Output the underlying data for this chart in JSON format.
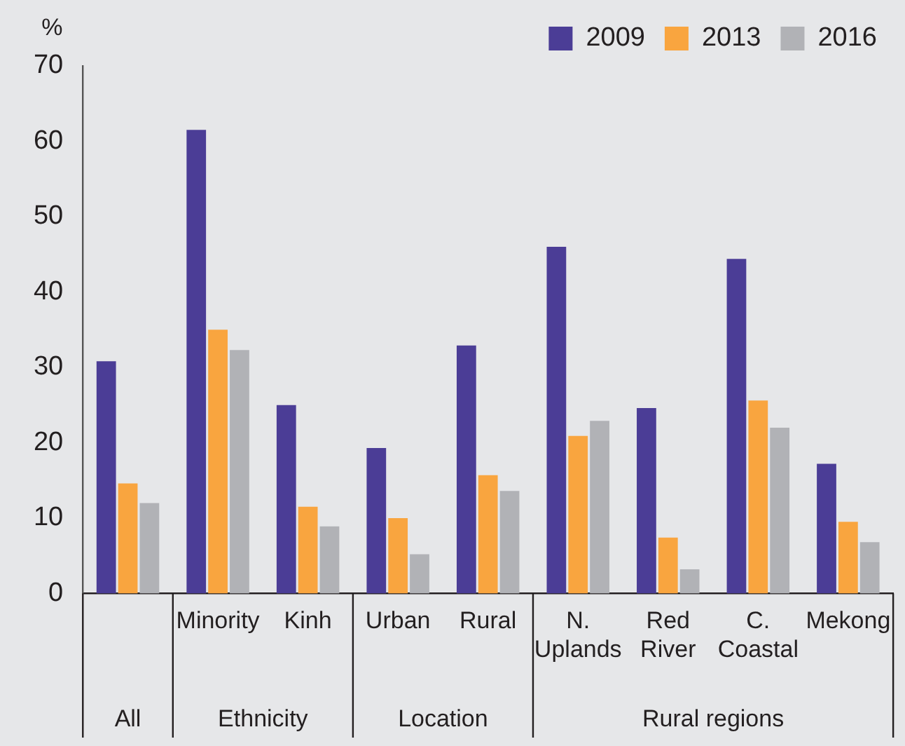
{
  "chart_data": {
    "type": "bar",
    "ylabel": "%",
    "categories": [
      null,
      "Minority",
      "Kinh",
      "Urban",
      "Rural",
      "N. Uplands",
      "Red River",
      "C. Coastal",
      "Mekong"
    ],
    "series": [
      {
        "name": "2009",
        "color": "#4b3d96",
        "values": [
          30.8,
          61.5,
          25.0,
          19.3,
          32.9,
          46.0,
          24.6,
          44.4,
          17.2
        ]
      },
      {
        "name": "2013",
        "color": "#f9a53f",
        "values": [
          14.6,
          35.0,
          11.5,
          10.0,
          15.7,
          20.9,
          7.4,
          25.6,
          9.5
        ]
      },
      {
        "name": "2016",
        "color": "#b1b2b6",
        "values": [
          12.0,
          32.3,
          8.9,
          5.2,
          13.6,
          22.9,
          3.2,
          22.0,
          6.8
        ]
      }
    ],
    "ylim": [
      0,
      70
    ],
    "yticks": [
      0,
      10,
      20,
      30,
      40,
      50,
      60,
      70
    ],
    "grid": false,
    "legend": "top right",
    "annotations": [
      "All",
      "Ethnicity",
      "Location",
      "Rural regions"
    ]
  }
}
